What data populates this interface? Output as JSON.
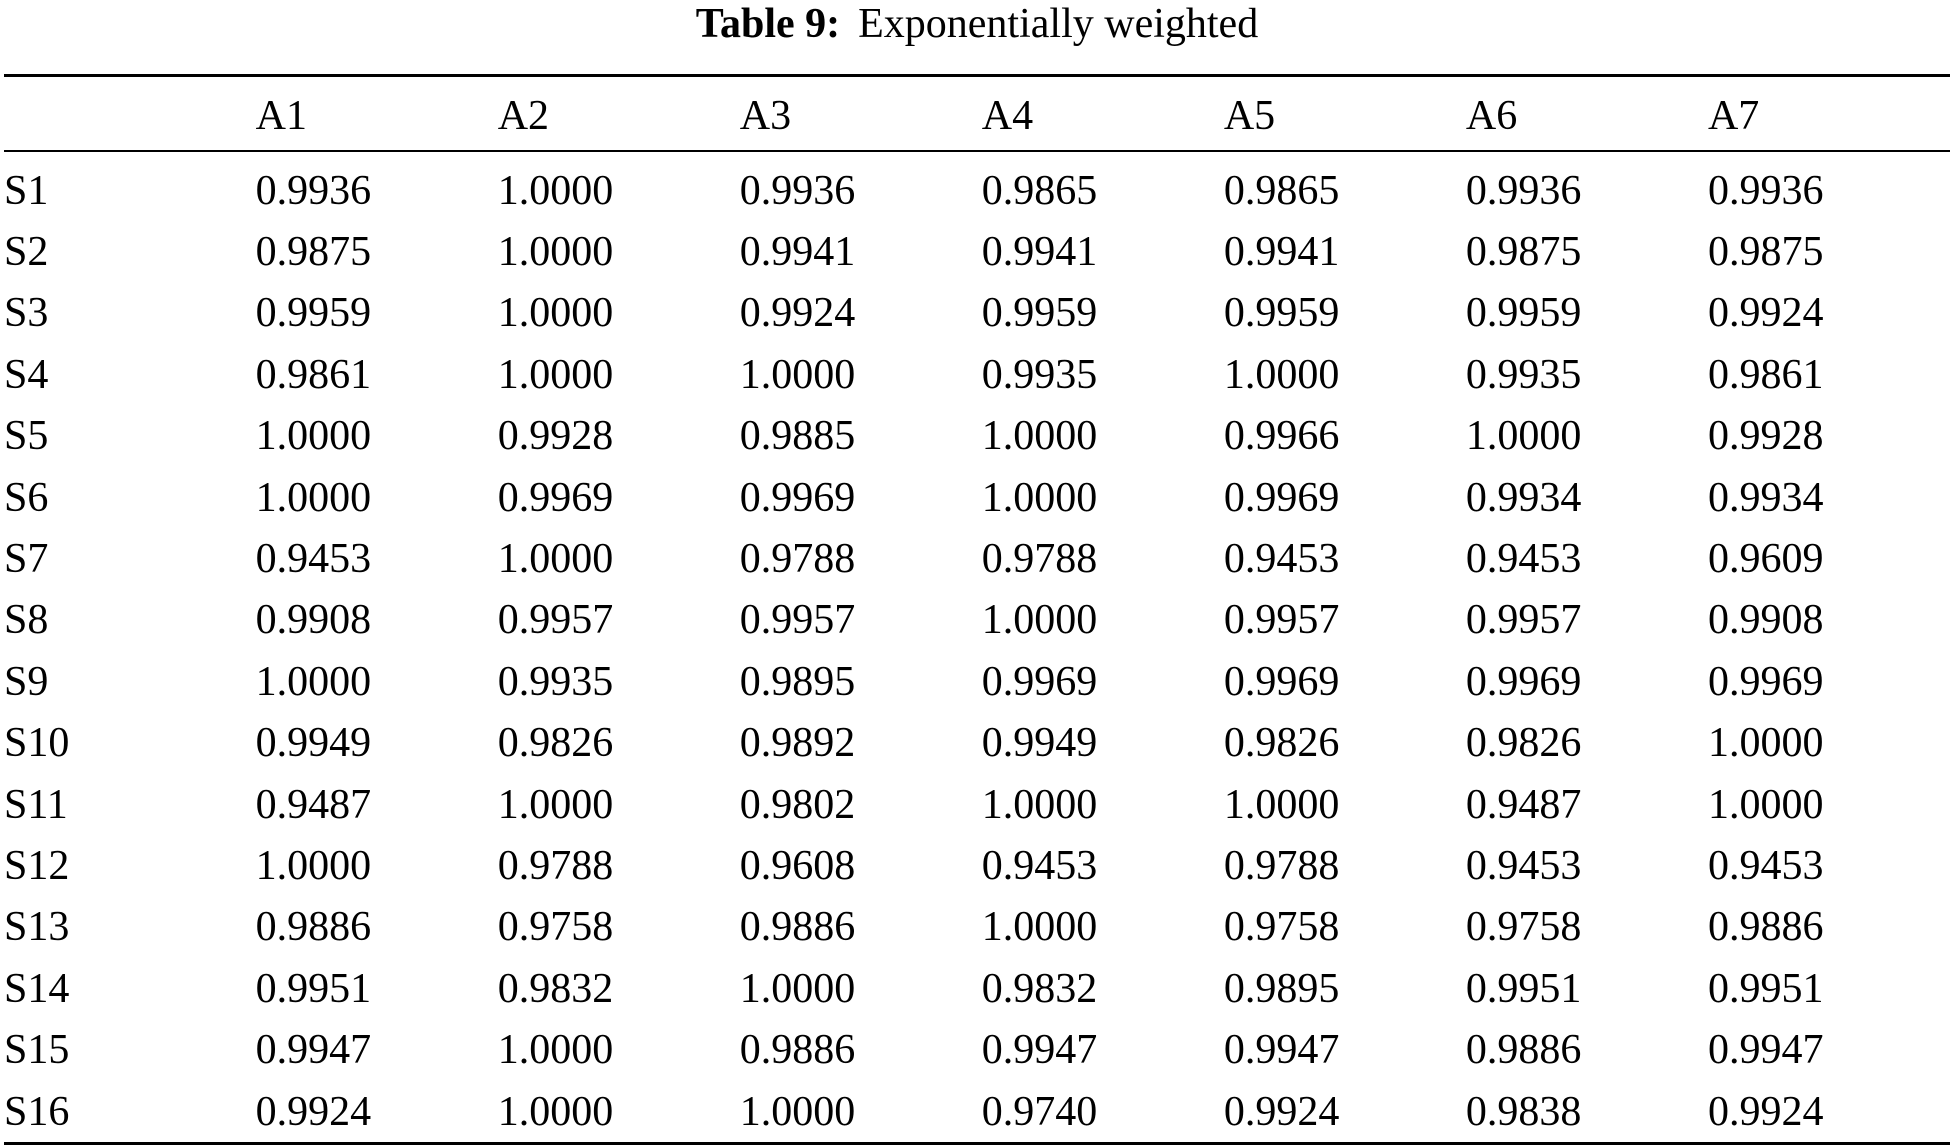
{
  "caption": {
    "label": "Table 9:",
    "title": "Exponentially weighted"
  },
  "table": {
    "headers": [
      "",
      "A1",
      "A2",
      "A3",
      "A4",
      "A5",
      "A6",
      "A7"
    ],
    "rows": [
      [
        "S1",
        "0.9936",
        "1.0000",
        "0.9936",
        "0.9865",
        "0.9865",
        "0.9936",
        "0.9936"
      ],
      [
        "S2",
        "0.9875",
        "1.0000",
        "0.9941",
        "0.9941",
        "0.9941",
        "0.9875",
        "0.9875"
      ],
      [
        "S3",
        "0.9959",
        "1.0000",
        "0.9924",
        "0.9959",
        "0.9959",
        "0.9959",
        "0.9924"
      ],
      [
        "S4",
        "0.9861",
        "1.0000",
        "1.0000",
        "0.9935",
        "1.0000",
        "0.9935",
        "0.9861"
      ],
      [
        "S5",
        "1.0000",
        "0.9928",
        "0.9885",
        "1.0000",
        "0.9966",
        "1.0000",
        "0.9928"
      ],
      [
        "S6",
        "1.0000",
        "0.9969",
        "0.9969",
        "1.0000",
        "0.9969",
        "0.9934",
        "0.9934"
      ],
      [
        "S7",
        "0.9453",
        "1.0000",
        "0.9788",
        "0.9788",
        "0.9453",
        "0.9453",
        "0.9609"
      ],
      [
        "S8",
        "0.9908",
        "0.9957",
        "0.9957",
        "1.0000",
        "0.9957",
        "0.9957",
        "0.9908"
      ],
      [
        "S9",
        "1.0000",
        "0.9935",
        "0.9895",
        "0.9969",
        "0.9969",
        "0.9969",
        "0.9969"
      ],
      [
        "S10",
        "0.9949",
        "0.9826",
        "0.9892",
        "0.9949",
        "0.9826",
        "0.9826",
        "1.0000"
      ],
      [
        "S11",
        "0.9487",
        "1.0000",
        "0.9802",
        "1.0000",
        "1.0000",
        "0.9487",
        "1.0000"
      ],
      [
        "S12",
        "1.0000",
        "0.9788",
        "0.9608",
        "0.9453",
        "0.9788",
        "0.9453",
        "0.9453"
      ],
      [
        "S13",
        "0.9886",
        "0.9758",
        "0.9886",
        "1.0000",
        "0.9758",
        "0.9758",
        "0.9886"
      ],
      [
        "S14",
        "0.9951",
        "0.9832",
        "1.0000",
        "0.9832",
        "0.9895",
        "0.9951",
        "0.9951"
      ],
      [
        "S15",
        "0.9947",
        "1.0000",
        "0.9886",
        "0.9947",
        "0.9947",
        "0.9886",
        "0.9947"
      ],
      [
        "S16",
        "0.9924",
        "1.0000",
        "1.0000",
        "0.9740",
        "0.9924",
        "0.9838",
        "0.9924"
      ]
    ]
  }
}
